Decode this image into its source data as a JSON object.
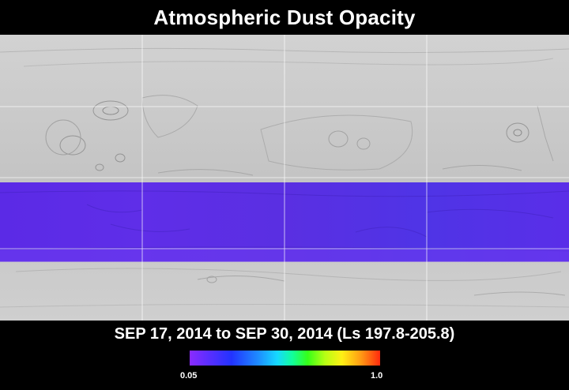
{
  "title": "Atmospheric Dust Opacity",
  "date_range": "SEP 17, 2014 to SEP 30, 2014 (Ls 197.8-205.8)",
  "colorbar": {
    "min_label": "0.05",
    "max_label": "1.0",
    "colors": [
      "#8a2bff",
      "#2233ff",
      "#16d9ff",
      "#12ff9a",
      "#36ff18",
      "#fff015",
      "#ff2a0e"
    ]
  },
  "map": {
    "terrain_color": "#c9c9c9",
    "opacity_band_color": "#5a2ee0"
  }
}
